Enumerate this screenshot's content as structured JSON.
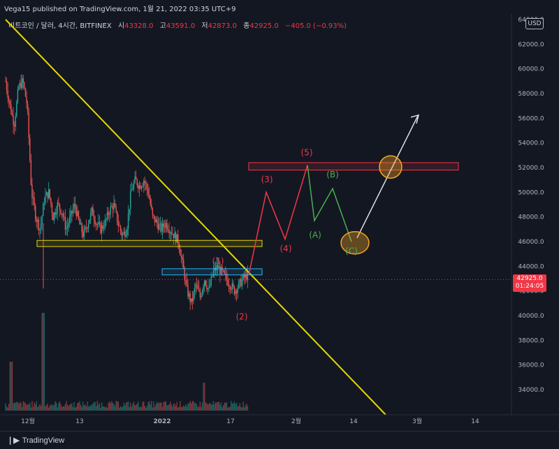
{
  "header": {
    "published": "Vega15 published on TradingView.com, 1월 21, 2022 03:35 UTC+9"
  },
  "legend": {
    "symbol": "비트코인 / 달러, 4시간, BITFINEX",
    "open_label": "시",
    "open": "43328.0",
    "high_label": "고",
    "high": "43591.0",
    "low_label": "저",
    "low": "42873.0",
    "close_label": "종",
    "close": "42925.0",
    "change": "−405.0 (−0.93%)"
  },
  "currency": "USD",
  "last_price": {
    "price": "42925.0",
    "countdown": "01:24:05"
  },
  "footer": {
    "brand": "TradingView"
  },
  "colors": {
    "background": "#131722",
    "up": "#26a69a",
    "down": "#ef5350",
    "trendline": "#e6d800",
    "wave_red": "#f23645",
    "wave_green": "#4caf50",
    "projection_white": "#ffffff",
    "circle": "#f5a623"
  },
  "chart_data": {
    "type": "candlestick",
    "title": "",
    "y_axis": {
      "range": [
        32800,
        64800
      ],
      "ticks": [
        34000,
        36000,
        38000,
        40000,
        42000,
        44000,
        46000,
        48000,
        50000,
        52000,
        54000,
        56000,
        58000,
        60000,
        62000,
        64000
      ],
      "tick_labels": [
        "34000.0",
        "36000.0",
        "38000.0",
        "40000.0",
        "42000.0",
        "44000.0",
        "46000.0",
        "48000.0",
        "50000.0",
        "52000.0",
        "54000.0",
        "56000.0",
        "58000.0",
        "60000.0",
        "62000.0",
        "64000.0"
      ]
    },
    "x_axis": {
      "tick_labels": [
        "12월",
        "13",
        "2022",
        "17",
        "2월",
        "14",
        "3월",
        "14"
      ]
    },
    "price_history": [
      59000,
      57000,
      55500,
      58500,
      59000,
      57000,
      50000,
      48000,
      47000,
      49500,
      50000,
      48000,
      49000,
      48500,
      47000,
      48000,
      49000,
      47500,
      46500,
      47500,
      48500,
      47500,
      47000,
      47500,
      48500,
      49000,
      47500,
      46500,
      47000,
      50000,
      51000,
      50500,
      51000,
      50000,
      48000,
      47500,
      47000,
      47500,
      47000,
      46500,
      46000,
      44000,
      42000,
      41000,
      42500,
      41500,
      43000,
      42000,
      43500,
      44000,
      43500,
      43000,
      42500,
      42000,
      42500,
      43000,
      43300
    ],
    "trendline": {
      "from": [
        "2021-11-30",
        62000
      ],
      "to": [
        "2022-02-27",
        32800
      ]
    },
    "zones": [
      {
        "name": "support",
        "y_range": [
          45600,
          46100
        ]
      },
      {
        "name": "local resistance",
        "y_range": [
          43300,
          43800
        ]
      },
      {
        "name": "target",
        "y_range": [
          51800,
          52400
        ]
      }
    ],
    "waves": [
      {
        "label": "(1)",
        "price": 44500,
        "color": "red"
      },
      {
        "label": "(2)",
        "price": 40800,
        "color": "red"
      },
      {
        "label": "(3)",
        "price": 50000,
        "color": "red"
      },
      {
        "label": "(4)",
        "price": 46200,
        "color": "red"
      },
      {
        "label": "(5)",
        "price": 52200,
        "color": "red"
      },
      {
        "label": "(A)",
        "price": 47700,
        "color": "green"
      },
      {
        "label": "(B)",
        "price": 50300,
        "color": "green"
      },
      {
        "label": "(C)",
        "price": 46000,
        "color": "green"
      }
    ],
    "projection_target": 56200,
    "volume_series": "shown"
  }
}
